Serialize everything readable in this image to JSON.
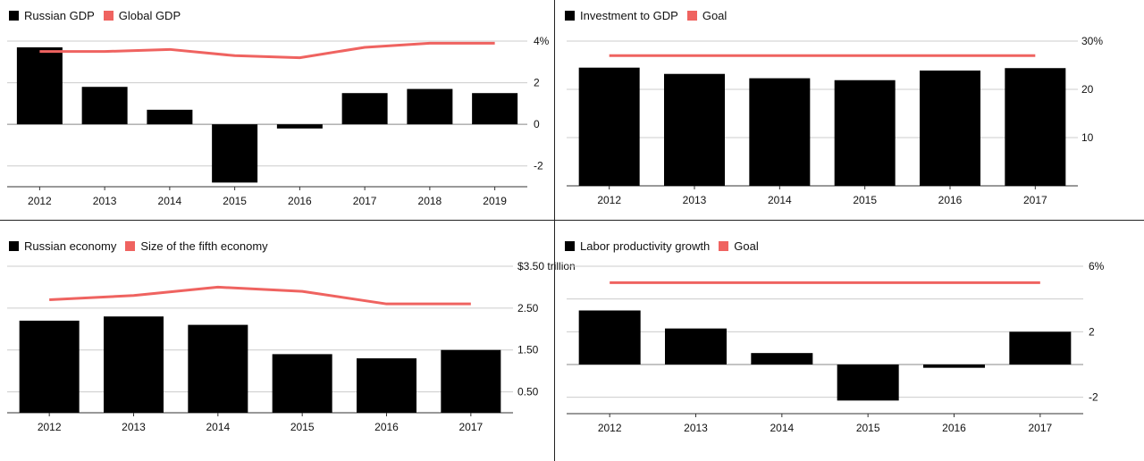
{
  "colors": {
    "bar": "#000000",
    "line": "#ef6360",
    "grid": "#cccccc"
  },
  "chart_data": [
    {
      "type": "bar",
      "legend": [
        "Russian GDP",
        "Global GDP"
      ],
      "categories": [
        "2012",
        "2013",
        "2014",
        "2015",
        "2016",
        "2017",
        "2018",
        "2019"
      ],
      "series": [
        {
          "name": "Russian GDP",
          "type": "bar",
          "values": [
            3.7,
            1.8,
            0.7,
            -2.8,
            -0.2,
            1.5,
            1.7,
            1.5
          ]
        },
        {
          "name": "Global GDP",
          "type": "line",
          "values": [
            3.5,
            3.5,
            3.6,
            3.3,
            3.2,
            3.7,
            3.9,
            3.9
          ]
        }
      ],
      "yticks": [
        {
          "value": 4,
          "label": "4%"
        },
        {
          "value": 2,
          "label": "2"
        },
        {
          "value": 0,
          "label": "0"
        },
        {
          "value": -2,
          "label": "-2"
        }
      ],
      "ylim": [
        -3,
        4
      ],
      "grid": true,
      "legend_position": "top-left"
    },
    {
      "type": "bar",
      "legend": [
        "Investment to GDP",
        "Goal"
      ],
      "categories": [
        "2012",
        "2013",
        "2014",
        "2015",
        "2016",
        "2017"
      ],
      "series": [
        {
          "name": "Investment to GDP",
          "type": "bar",
          "values": [
            24.5,
            23.2,
            22.3,
            21.9,
            23.9,
            24.4
          ]
        },
        {
          "name": "Goal",
          "type": "line",
          "values": [
            27,
            27,
            27,
            27,
            27,
            27
          ]
        }
      ],
      "yticks": [
        {
          "value": 30,
          "label": "30%"
        },
        {
          "value": 20,
          "label": "20"
        },
        {
          "value": 10,
          "label": "10"
        }
      ],
      "ylim": [
        0,
        30
      ],
      "grid": true,
      "legend_position": "top-left"
    },
    {
      "type": "bar",
      "legend": [
        "Russian economy",
        "Size of the fifth economy"
      ],
      "categories": [
        "2012",
        "2013",
        "2014",
        "2015",
        "2016",
        "2017"
      ],
      "series": [
        {
          "name": "Russian economy",
          "type": "bar",
          "values": [
            2.2,
            2.3,
            2.1,
            1.4,
            1.3,
            1.5
          ]
        },
        {
          "name": "Size of the fifth economy",
          "type": "line",
          "values": [
            2.7,
            2.8,
            3.0,
            2.9,
            2.6,
            2.6
          ]
        }
      ],
      "yticks": [
        {
          "value": 3.5,
          "label": "$3.50 trillion"
        },
        {
          "value": 2.5,
          "label": "2.50"
        },
        {
          "value": 1.5,
          "label": "1.50"
        },
        {
          "value": 0.5,
          "label": "0.50"
        }
      ],
      "ylim": [
        0,
        3.5
      ],
      "grid": true,
      "legend_position": "top-left"
    },
    {
      "type": "bar",
      "legend": [
        "Labor productivity growth",
        "Goal"
      ],
      "categories": [
        "2012",
        "2013",
        "2014",
        "2015",
        "2016",
        "2017"
      ],
      "series": [
        {
          "name": "Labor productivity growth",
          "type": "bar",
          "values": [
            3.3,
            2.2,
            0.7,
            -2.2,
            -0.2,
            2.0
          ]
        },
        {
          "name": "Goal",
          "type": "line",
          "values": [
            5,
            5,
            5,
            5,
            5,
            5
          ]
        }
      ],
      "yticks": [
        {
          "value": 6,
          "label": "6%"
        },
        {
          "value": 4,
          "label": ""
        },
        {
          "value": 2,
          "label": "2"
        },
        {
          "value": 0,
          "label": ""
        },
        {
          "value": -2,
          "label": "-2"
        }
      ],
      "ylim": [
        -3,
        6
      ],
      "grid": true,
      "legend_position": "top-left"
    }
  ]
}
